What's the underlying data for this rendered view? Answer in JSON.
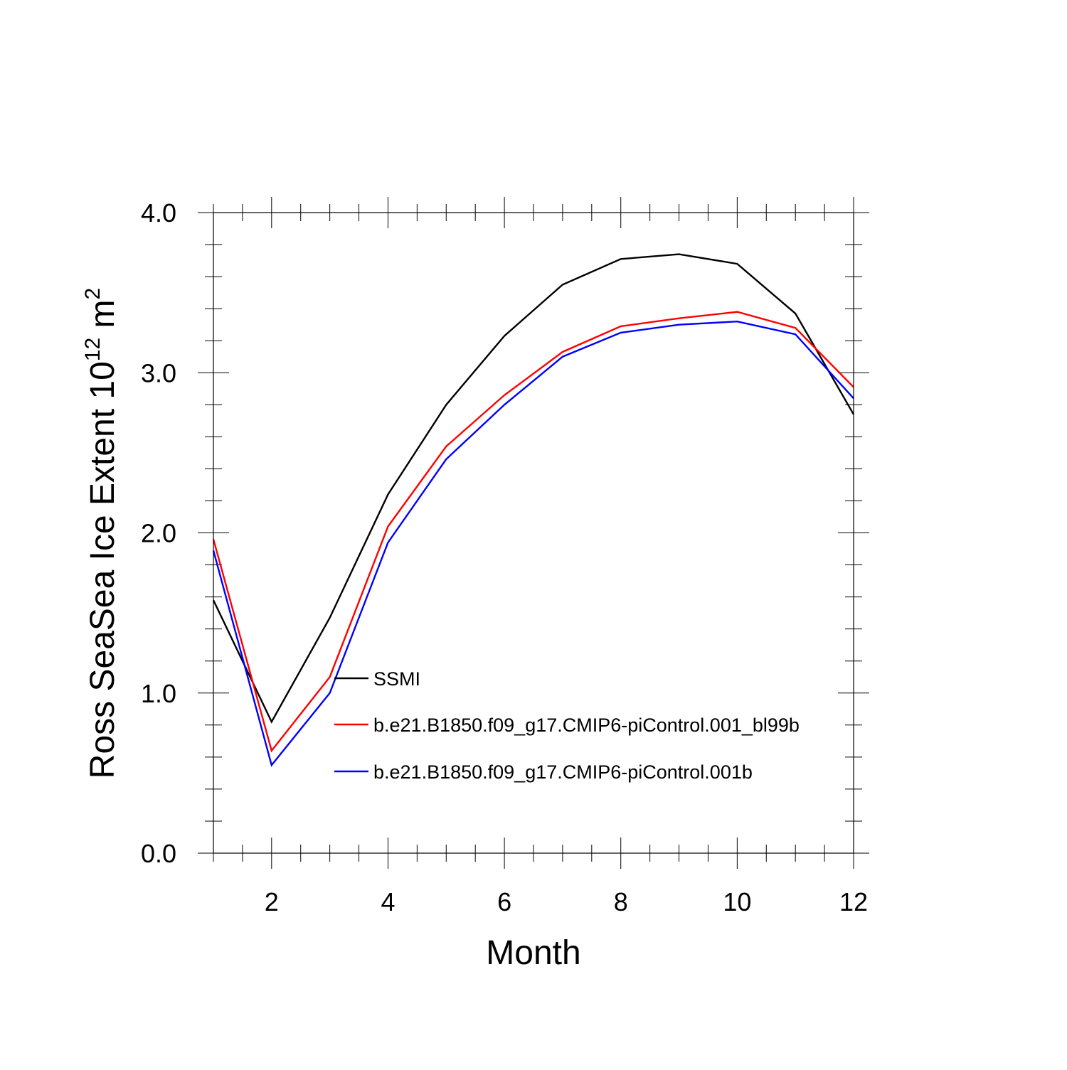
{
  "chart_data": {
    "type": "line",
    "title": "",
    "xlabel": "Month",
    "ylabel": {
      "prefix": "Ross SeaSea Ice Extent 10",
      "superscript": "12",
      "unit": " m",
      "unit_superscript": "2"
    },
    "xlim": [
      1,
      12
    ],
    "ylim": [
      0.0,
      4.0
    ],
    "x_major_ticks": [
      2,
      4,
      6,
      8,
      10,
      12
    ],
    "x_minor_step": 0.5,
    "y_major_ticks": [
      0.0,
      1.0,
      2.0,
      3.0,
      4.0
    ],
    "y_tick_labels": [
      "0.0",
      "1.0",
      "2.0",
      "3.0",
      "4.0"
    ],
    "y_minor_step": 0.2,
    "grid": false,
    "legend_position": "center",
    "x": [
      1,
      2,
      3,
      4,
      5,
      6,
      7,
      8,
      9,
      10,
      11,
      12
    ],
    "series": [
      {
        "name": "SSMI",
        "color": "#000000",
        "values": [
          1.58,
          0.82,
          1.47,
          2.24,
          2.8,
          3.23,
          3.55,
          3.71,
          3.74,
          3.68,
          3.37,
          2.74
        ]
      },
      {
        "name": "b.e21.B1850.f09_g17.CMIP6-piControl.001_bl99b",
        "color": "#ff0000",
        "values": [
          1.96,
          0.64,
          1.1,
          2.04,
          2.54,
          2.86,
          3.13,
          3.29,
          3.34,
          3.38,
          3.28,
          2.91
        ]
      },
      {
        "name": "b.e21.B1850.f09_g17.CMIP6-piControl.001b",
        "color": "#0000ff",
        "values": [
          1.89,
          0.55,
          1.0,
          1.94,
          2.46,
          2.8,
          3.1,
          3.25,
          3.3,
          3.32,
          3.24,
          2.84
        ]
      }
    ]
  }
}
